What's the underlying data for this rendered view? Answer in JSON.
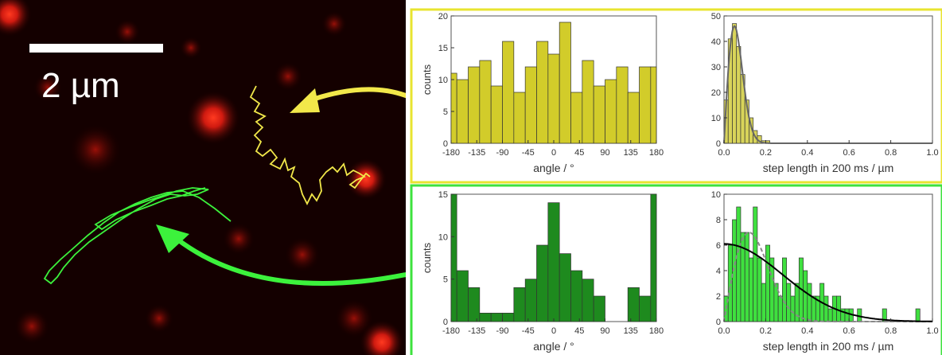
{
  "microscopy": {
    "scale_bar_label": "2 µm",
    "track_colors": {
      "yellow": "#f2e84a",
      "green": "#3cf23c"
    }
  },
  "colors": {
    "yellow_panel_border": "#e8e430",
    "green_panel_border": "#3ee23e",
    "yellow_bar": "#d2cc2a",
    "green_bar_dark": "#1e8a1e",
    "green_bar_light": "#3fe03f"
  },
  "chart_data": [
    {
      "type": "bar",
      "panel": "yellow",
      "xlabel": "angle / °",
      "ylabel": "counts",
      "xlim": [
        -180,
        180
      ],
      "ylim": [
        0,
        20
      ],
      "xticks": [
        -180,
        -135,
        -90,
        -45,
        0,
        45,
        90,
        135,
        180
      ],
      "yticks": [
        0,
        5,
        10,
        15,
        20
      ],
      "bin_width": 20,
      "x": [
        -180,
        -160,
        -140,
        -120,
        -100,
        -80,
        -60,
        -40,
        -20,
        0,
        20,
        40,
        60,
        80,
        100,
        120,
        140,
        160,
        180
      ],
      "values": [
        11,
        10,
        12,
        13,
        9,
        16,
        8,
        12,
        16,
        14,
        19,
        8,
        13,
        9,
        10,
        12,
        8,
        12,
        12
      ]
    },
    {
      "type": "bar",
      "panel": "yellow",
      "xlabel": "step length in 200 ms / µm",
      "ylabel": "",
      "xlim": [
        0,
        1.0
      ],
      "ylim": [
        0,
        50
      ],
      "xticks": [
        0.0,
        0.2,
        0.4,
        0.6,
        0.8,
        1.0
      ],
      "yticks": [
        0,
        10,
        20,
        30,
        40,
        50
      ],
      "bin_width": 0.02,
      "x": [
        0.01,
        0.03,
        0.05,
        0.07,
        0.09,
        0.11,
        0.13,
        0.15,
        0.17,
        0.19,
        0.21
      ],
      "values": [
        17,
        41,
        47,
        38,
        27,
        17,
        10,
        5,
        3,
        1,
        1
      ],
      "fit_curve": {
        "type": "rayleigh",
        "peak_x": 0.05,
        "peak_y": 46,
        "color": "#666666"
      }
    },
    {
      "type": "bar",
      "panel": "green",
      "xlabel": "angle / °",
      "ylabel": "counts",
      "xlim": [
        -180,
        180
      ],
      "ylim": [
        0,
        15
      ],
      "xticks": [
        -180,
        -135,
        -90,
        -45,
        0,
        45,
        90,
        135,
        180
      ],
      "yticks": [
        0,
        5,
        10,
        15
      ],
      "bin_width": 20,
      "x": [
        -180,
        -160,
        -140,
        -120,
        -100,
        -80,
        -60,
        -40,
        -20,
        0,
        20,
        40,
        60,
        80,
        100,
        120,
        140,
        160,
        180
      ],
      "values": [
        15,
        6,
        4,
        1,
        1,
        1,
        4,
        5,
        9,
        14,
        8,
        6,
        5,
        3,
        0,
        0,
        4,
        3,
        15
      ]
    },
    {
      "type": "bar",
      "panel": "green",
      "xlabel": "step length in 200 ms / µm",
      "ylabel": "",
      "xlim": [
        0,
        1.0
      ],
      "ylim": [
        0,
        10
      ],
      "xticks": [
        0.0,
        0.2,
        0.4,
        0.6,
        0.8,
        1.0
      ],
      "yticks": [
        0,
        2,
        4,
        6,
        8,
        10
      ],
      "bin_width": 0.02,
      "x": [
        0.01,
        0.03,
        0.05,
        0.07,
        0.09,
        0.11,
        0.13,
        0.15,
        0.17,
        0.19,
        0.21,
        0.23,
        0.25,
        0.27,
        0.29,
        0.31,
        0.33,
        0.35,
        0.37,
        0.39,
        0.41,
        0.43,
        0.45,
        0.47,
        0.49,
        0.51,
        0.53,
        0.55,
        0.57,
        0.59,
        0.61,
        0.63,
        0.65,
        0.77,
        0.93
      ],
      "values": [
        2,
        6,
        8,
        9,
        7,
        7,
        5,
        9,
        5,
        3,
        6,
        5,
        3,
        2,
        5,
        3,
        2,
        3,
        5,
        4,
        3,
        2,
        2,
        3,
        2,
        1,
        2,
        2,
        1,
        1,
        1,
        0,
        1,
        1,
        1
      ],
      "fit_curve": {
        "type": "gaussian",
        "peak_y": 6.1,
        "sigma": 0.28,
        "color": "#000000"
      },
      "fit_curve_dashed": {
        "type": "rayleigh",
        "peak_x": 0.12,
        "peak_y": 7.0,
        "color": "#888888"
      }
    }
  ]
}
